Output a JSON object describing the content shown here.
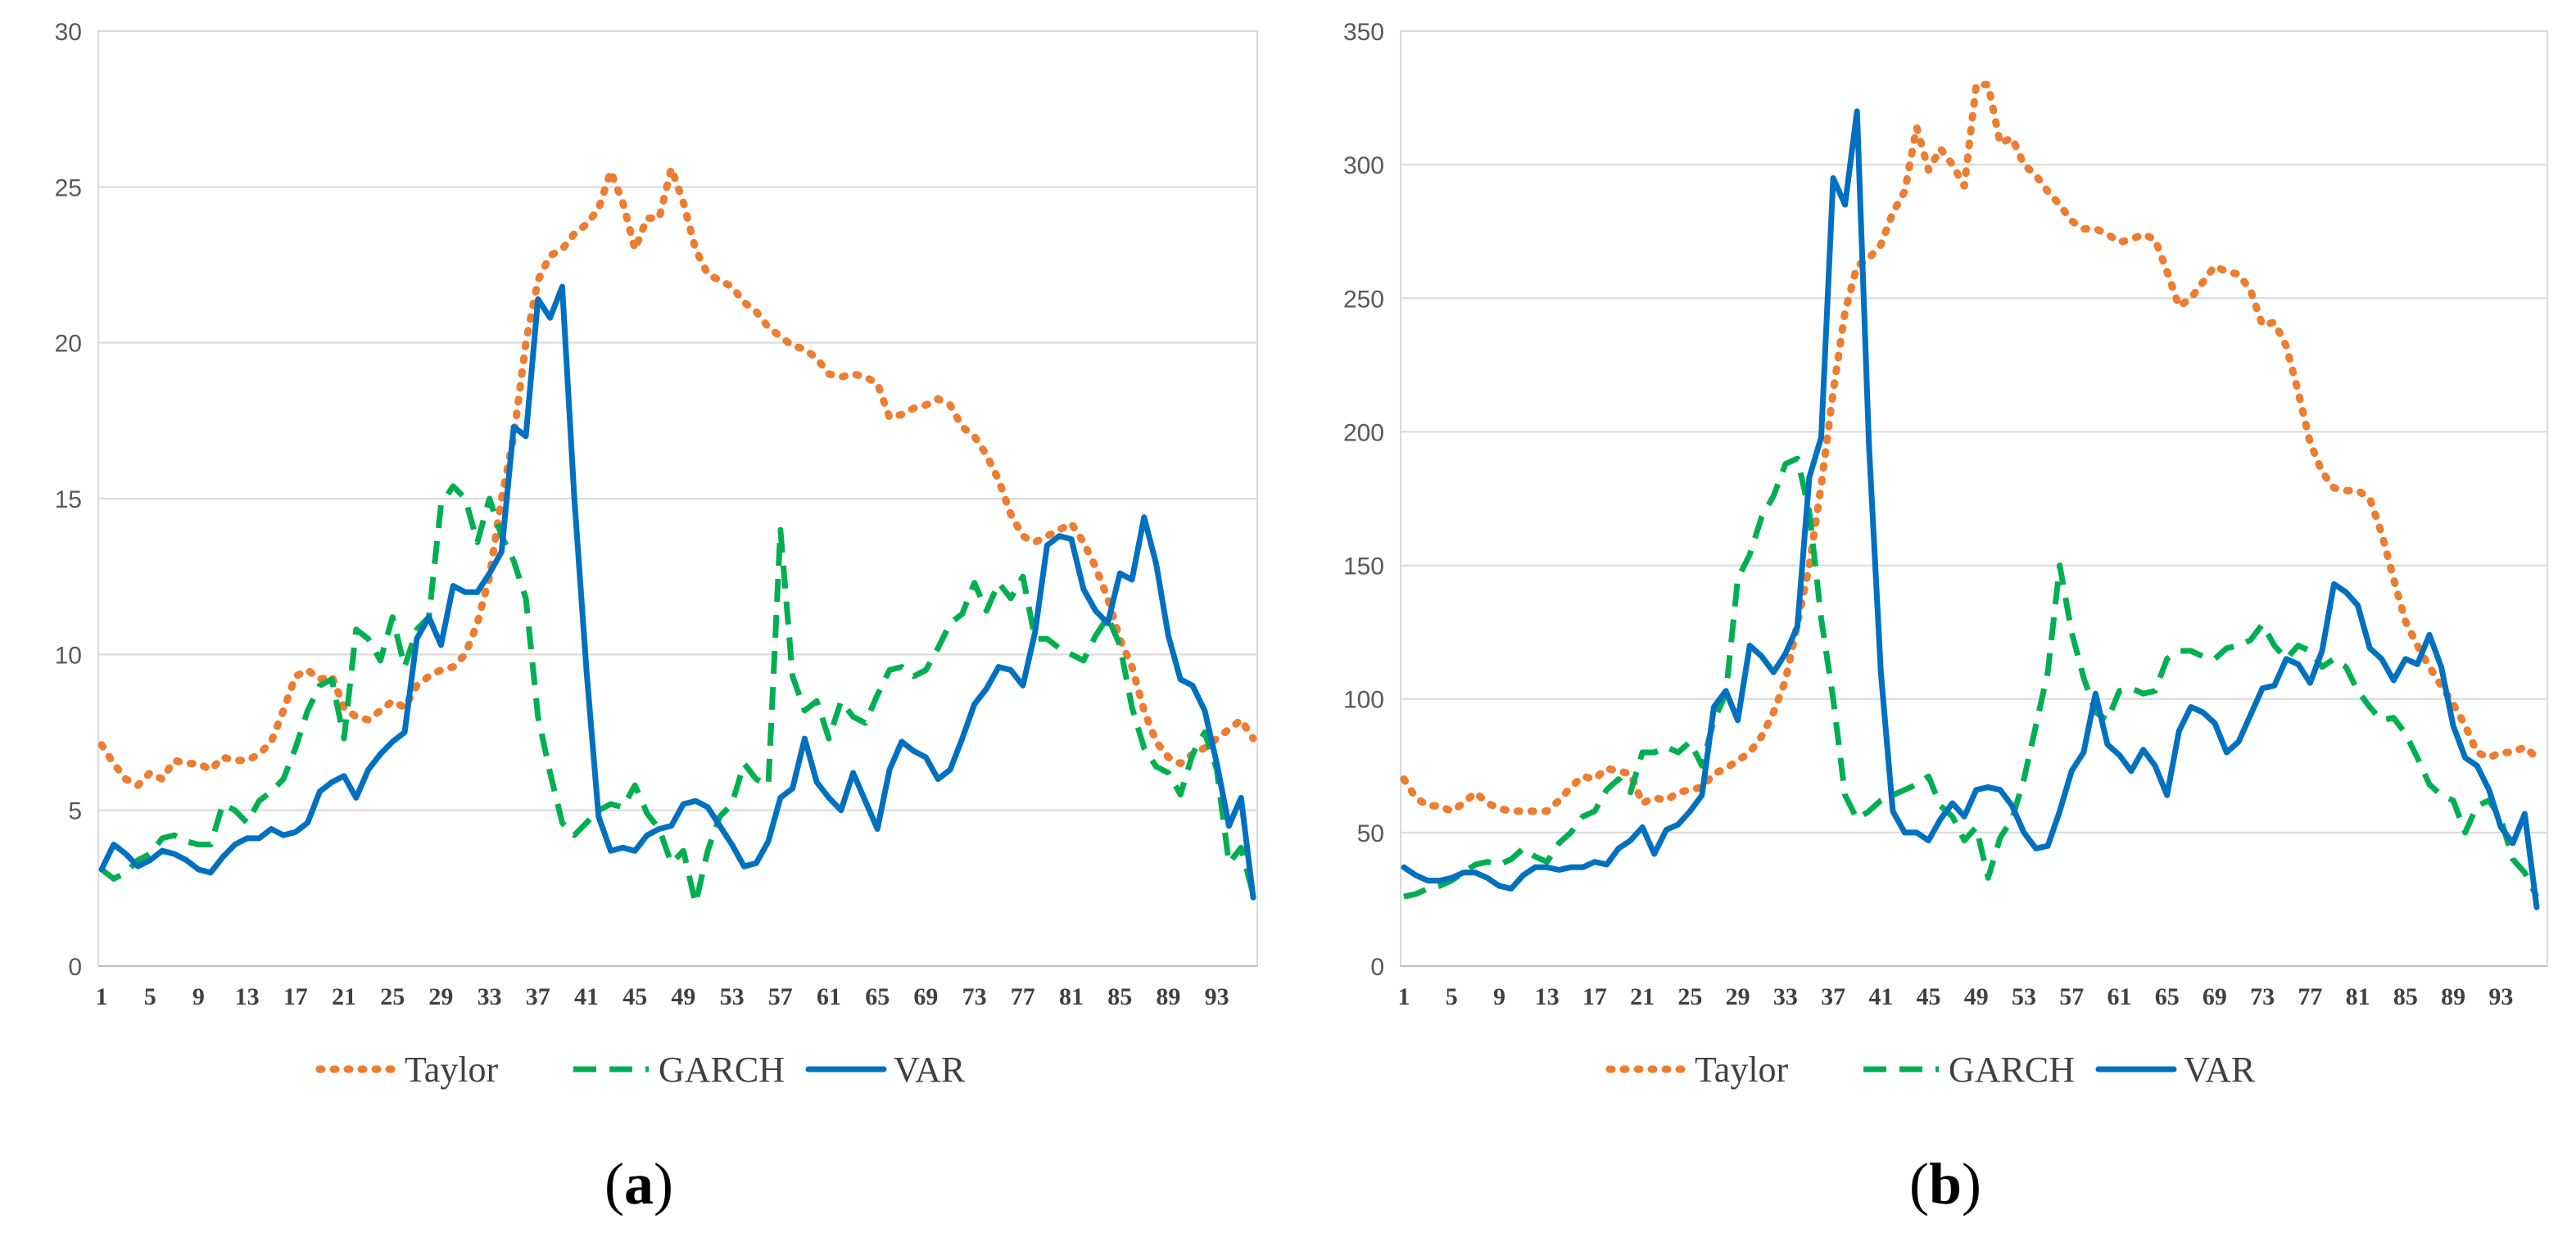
{
  "colors": {
    "taylor": "#ed7d31",
    "garch": "#00b050",
    "var": "#0070c0",
    "grid": "#d9d9d9",
    "tick": "#595959"
  },
  "legend": [
    {
      "name": "Taylor",
      "style": "dotted",
      "color": "#ed7d31"
    },
    {
      "name": "GARCH",
      "style": "dashed",
      "color": "#00b050"
    },
    {
      "name": "VAR",
      "style": "solid",
      "color": "#0070c0"
    }
  ],
  "chart_data": [
    {
      "type": "line",
      "panel_label": "(a)",
      "panel_letter": "a",
      "x": [
        1,
        2,
        3,
        4,
        5,
        6,
        7,
        8,
        9,
        10,
        11,
        12,
        13,
        14,
        15,
        16,
        17,
        18,
        19,
        20,
        21,
        22,
        23,
        24,
        25,
        26,
        27,
        28,
        29,
        30,
        31,
        32,
        33,
        34,
        35,
        36,
        37,
        38,
        39,
        40,
        41,
        42,
        43,
        44,
        45,
        46,
        47,
        48,
        49,
        50,
        51,
        52,
        53,
        54,
        55,
        56,
        57,
        58,
        59,
        60,
        61,
        62,
        63,
        64,
        65,
        66,
        67,
        68,
        69,
        70,
        71,
        72,
        73,
        74,
        75,
        76,
        77,
        78,
        79,
        80,
        81,
        82,
        83,
        84,
        85,
        86,
        87,
        88,
        89,
        90,
        91,
        92,
        93,
        94,
        95,
        96
      ],
      "x_tick_labels": [
        "1",
        "5",
        "9",
        "13",
        "17",
        "21",
        "25",
        "29",
        "33",
        "37",
        "41",
        "45",
        "49",
        "53",
        "57",
        "61",
        "65",
        "69",
        "73",
        "77",
        "81",
        "85",
        "89",
        "93"
      ],
      "y_ticks": [
        0,
        5,
        10,
        15,
        20,
        25,
        30
      ],
      "ylim": [
        0,
        30
      ],
      "series": [
        {
          "name": "Taylor",
          "values": [
            7.1,
            6.5,
            6.0,
            5.8,
            6.2,
            6.0,
            6.6,
            6.5,
            6.5,
            6.3,
            6.7,
            6.6,
            6.6,
            6.8,
            7.2,
            8.2,
            9.3,
            9.5,
            9.2,
            9.3,
            8.3,
            8.0,
            7.9,
            8.2,
            8.5,
            8.3,
            9.0,
            9.3,
            9.5,
            9.6,
            10.0,
            11.0,
            12.5,
            15.0,
            17.0,
            20.0,
            22.0,
            22.8,
            23.0,
            23.5,
            23.8,
            24.3,
            25.5,
            24.5,
            23.0,
            24.0,
            24.0,
            25.6,
            24.5,
            23.0,
            22.2,
            22.0,
            21.8,
            21.3,
            21.0,
            20.5,
            20.2,
            19.9,
            19.8,
            19.5,
            19.0,
            18.9,
            19.0,
            18.9,
            18.7,
            17.6,
            17.7,
            17.9,
            18.0,
            18.2,
            18.0,
            17.3,
            17.0,
            16.4,
            15.6,
            14.5,
            13.8,
            13.6,
            13.8,
            14.0,
            14.2,
            13.6,
            12.8,
            11.8,
            10.5,
            9.6,
            8.2,
            7.2,
            6.7,
            6.5,
            6.8,
            7.0,
            7.3,
            7.6,
            7.9,
            7.3
          ]
        },
        {
          "name": "GARCH",
          "values": [
            3.1,
            2.8,
            3.0,
            3.4,
            3.6,
            4.1,
            4.2,
            4.0,
            3.9,
            3.9,
            5.2,
            5.0,
            4.6,
            5.3,
            5.6,
            6.0,
            7.0,
            8.2,
            9.0,
            9.2,
            7.3,
            10.8,
            10.5,
            9.8,
            11.2,
            9.6,
            10.8,
            11.2,
            14.8,
            15.4,
            15.0,
            13.6,
            15.0,
            13.8,
            13.0,
            11.8,
            8.0,
            6.2,
            4.6,
            4.2,
            4.6,
            5.0,
            5.2,
            5.1,
            5.8,
            4.9,
            4.4,
            3.3,
            3.7,
            2.0,
            3.7,
            4.8,
            5.2,
            6.5,
            6.0,
            5.8,
            14.0,
            9.3,
            8.2,
            8.5,
            7.3,
            8.5,
            8.0,
            7.8,
            8.7,
            9.5,
            9.6,
            9.3,
            9.5,
            10.2,
            11.0,
            11.3,
            12.3,
            11.4,
            12.3,
            11.8,
            12.5,
            10.5,
            10.5,
            10.2,
            10.0,
            9.8,
            10.6,
            11.2,
            10.3,
            8.3,
            7.0,
            6.4,
            6.2,
            5.5,
            6.8,
            7.5,
            6.3,
            3.3,
            3.8,
            2.3
          ]
        },
        {
          "name": "VAR",
          "values": [
            3.1,
            3.9,
            3.6,
            3.2,
            3.4,
            3.7,
            3.6,
            3.4,
            3.1,
            3.0,
            3.5,
            3.9,
            4.1,
            4.1,
            4.4,
            4.2,
            4.3,
            4.6,
            5.6,
            5.9,
            6.1,
            5.4,
            6.3,
            6.8,
            7.2,
            7.5,
            10.5,
            11.2,
            10.3,
            12.2,
            12.0,
            12.0,
            12.6,
            13.3,
            17.3,
            17.0,
            21.4,
            20.8,
            21.8,
            15.0,
            9.5,
            4.8,
            3.7,
            3.8,
            3.7,
            4.2,
            4.4,
            4.5,
            5.2,
            5.3,
            5.1,
            4.5,
            3.9,
            3.2,
            3.3,
            4.0,
            5.4,
            5.7,
            7.3,
            5.9,
            5.4,
            5.0,
            6.2,
            5.3,
            4.4,
            6.3,
            7.2,
            6.9,
            6.7,
            6.0,
            6.3,
            7.3,
            8.4,
            8.9,
            9.6,
            9.5,
            9.0,
            10.7,
            13.5,
            13.8,
            13.7,
            12.1,
            11.4,
            11.0,
            12.6,
            12.4,
            14.4,
            12.9,
            10.6,
            9.2,
            9.0,
            8.2,
            6.5,
            4.5,
            5.4,
            2.2
          ]
        }
      ]
    },
    {
      "type": "line",
      "panel_label": "(b)",
      "panel_letter": "b",
      "x": [
        1,
        2,
        3,
        4,
        5,
        6,
        7,
        8,
        9,
        10,
        11,
        12,
        13,
        14,
        15,
        16,
        17,
        18,
        19,
        20,
        21,
        22,
        23,
        24,
        25,
        26,
        27,
        28,
        29,
        30,
        31,
        32,
        33,
        34,
        35,
        36,
        37,
        38,
        39,
        40,
        41,
        42,
        43,
        44,
        45,
        46,
        47,
        48,
        49,
        50,
        51,
        52,
        53,
        54,
        55,
        56,
        57,
        58,
        59,
        60,
        61,
        62,
        63,
        64,
        65,
        66,
        67,
        68,
        69,
        70,
        71,
        72,
        73,
        74,
        75,
        76,
        77,
        78,
        79,
        80,
        81,
        82,
        83,
        84,
        85,
        86,
        87,
        88,
        89,
        90,
        91,
        92,
        93,
        94,
        95,
        96
      ],
      "x_tick_labels": [
        "1",
        "5",
        "9",
        "13",
        "17",
        "21",
        "25",
        "29",
        "33",
        "37",
        "41",
        "45",
        "49",
        "53",
        "57",
        "61",
        "65",
        "69",
        "73",
        "77",
        "81",
        "85",
        "89",
        "93"
      ],
      "y_ticks": [
        0,
        50,
        100,
        150,
        200,
        250,
        300,
        350
      ],
      "ylim": [
        0,
        350
      ],
      "series": [
        {
          "name": "Taylor",
          "values": [
            70,
            63,
            60,
            60,
            58,
            61,
            65,
            61,
            59,
            58,
            58,
            58,
            58,
            62,
            67,
            71,
            70,
            74,
            73,
            72,
            61,
            63,
            62,
            65,
            66,
            67,
            72,
            74,
            77,
            80,
            86,
            95,
            107,
            128,
            150,
            180,
            215,
            245,
            262,
            265,
            270,
            282,
            290,
            314,
            298,
            306,
            300,
            292,
            330,
            330,
            308,
            310,
            300,
            296,
            290,
            285,
            279,
            276,
            276,
            274,
            271,
            272,
            274,
            272,
            260,
            247,
            250,
            256,
            262,
            260,
            259,
            253,
            240,
            241,
            232,
            215,
            196,
            185,
            179,
            178,
            178,
            175,
            162,
            145,
            129,
            120,
            112,
            105,
            98,
            90,
            80,
            78,
            80,
            80,
            82,
            78
          ]
        },
        {
          "name": "GARCH",
          "values": [
            26,
            27,
            29,
            30,
            32,
            35,
            38,
            39,
            38,
            40,
            44,
            41,
            39,
            46,
            50,
            56,
            58,
            66,
            70,
            65,
            80,
            80,
            82,
            80,
            84,
            75,
            92,
            102,
            145,
            154,
            168,
            176,
            188,
            190,
            170,
            130,
            100,
            64,
            55,
            58,
            62,
            64,
            66,
            68,
            71,
            60,
            56,
            47,
            52,
            33,
            48,
            55,
            70,
            90,
            110,
            150,
            125,
            108,
            95,
            92,
            103,
            104,
            102,
            103,
            115,
            118,
            118,
            116,
            115,
            119,
            120,
            122,
            128,
            120,
            115,
            120,
            118,
            112,
            115,
            112,
            103,
            97,
            92,
            93,
            87,
            78,
            68,
            64,
            62,
            50,
            60,
            62,
            55,
            40,
            35,
            26
          ]
        },
        {
          "name": "VAR",
          "values": [
            37,
            34,
            32,
            32,
            33,
            35,
            35,
            33,
            30,
            29,
            34,
            37,
            37,
            36,
            37,
            37,
            39,
            38,
            44,
            47,
            52,
            42,
            51,
            53,
            58,
            64,
            97,
            103,
            92,
            120,
            116,
            110,
            117,
            127,
            183,
            198,
            295,
            285,
            320,
            195,
            110,
            58,
            50,
            50,
            47,
            55,
            61,
            56,
            66,
            67,
            66,
            60,
            50,
            44,
            45,
            58,
            73,
            80,
            102,
            83,
            79,
            73,
            81,
            75,
            64,
            88,
            97,
            95,
            91,
            80,
            84,
            94,
            104,
            105,
            115,
            113,
            106,
            118,
            143,
            140,
            135,
            119,
            115,
            107,
            115,
            113,
            124,
            112,
            90,
            78,
            75,
            66,
            52,
            46,
            57,
            22
          ]
        }
      ]
    }
  ]
}
